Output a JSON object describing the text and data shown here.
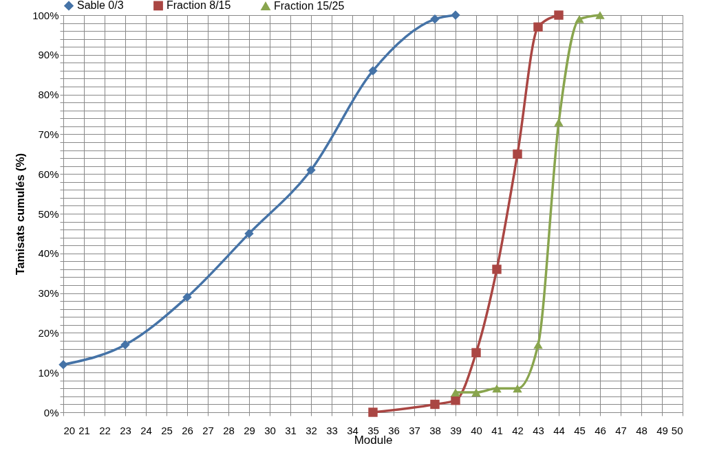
{
  "chart_data": {
    "type": "line",
    "xlabel": "Module",
    "ylabel": "Tamisats cumulés  (%)",
    "xlim": [
      20,
      50
    ],
    "xticks": [
      20,
      21,
      22,
      23,
      24,
      25,
      26,
      27,
      28,
      29,
      30,
      31,
      32,
      33,
      34,
      35,
      36,
      37,
      38,
      39,
      40,
      41,
      42,
      43,
      44,
      45,
      46,
      47,
      48,
      49,
      50
    ],
    "ylim": [
      0,
      100
    ],
    "yticks": [
      {
        "value": 0,
        "label": "0%"
      },
      {
        "value": 2,
        "label": null
      },
      {
        "value": 4,
        "label": null
      },
      {
        "value": 6,
        "label": null
      },
      {
        "value": 8,
        "label": null
      },
      {
        "value": 10,
        "label": "10%"
      },
      {
        "value": 12,
        "label": null
      },
      {
        "value": 14,
        "label": null
      },
      {
        "value": 16,
        "label": null
      },
      {
        "value": 18,
        "label": null
      },
      {
        "value": 20,
        "label": "20%"
      },
      {
        "value": 22,
        "label": null
      },
      {
        "value": 24,
        "label": null
      },
      {
        "value": 26,
        "label": null
      },
      {
        "value": 28,
        "label": null
      },
      {
        "value": 30,
        "label": "30%"
      },
      {
        "value": 32,
        "label": null
      },
      {
        "value": 34,
        "label": null
      },
      {
        "value": 36,
        "label": null
      },
      {
        "value": 38,
        "label": null
      },
      {
        "value": 40,
        "label": "40%"
      },
      {
        "value": 42,
        "label": null
      },
      {
        "value": 44,
        "label": null
      },
      {
        "value": 46,
        "label": null
      },
      {
        "value": 48,
        "label": null
      },
      {
        "value": 50,
        "label": "50%"
      },
      {
        "value": 52,
        "label": null
      },
      {
        "value": 54,
        "label": null
      },
      {
        "value": 56,
        "label": null
      },
      {
        "value": 58,
        "label": null
      },
      {
        "value": 60,
        "label": "60%"
      },
      {
        "value": 62,
        "label": null
      },
      {
        "value": 64,
        "label": null
      },
      {
        "value": 66,
        "label": null
      },
      {
        "value": 68,
        "label": null
      },
      {
        "value": 70,
        "label": "70%"
      },
      {
        "value": 72,
        "label": null
      },
      {
        "value": 74,
        "label": null
      },
      {
        "value": 76,
        "label": null
      },
      {
        "value": 78,
        "label": null
      },
      {
        "value": 80,
        "label": "80%"
      },
      {
        "value": 82,
        "label": null
      },
      {
        "value": 84,
        "label": null
      },
      {
        "value": 86,
        "label": null
      },
      {
        "value": 88,
        "label": null
      },
      {
        "value": 90,
        "label": "90%"
      },
      {
        "value": 92,
        "label": null
      },
      {
        "value": 94,
        "label": null
      },
      {
        "value": 96,
        "label": null
      },
      {
        "value": 98,
        "label": null
      },
      {
        "value": 100,
        "label": "100%"
      }
    ],
    "grid": true,
    "legend": "top",
    "series": [
      {
        "name": "Sable 0/3",
        "color": "#4573a7",
        "marker": "diamond",
        "x": [
          20,
          23,
          26,
          29,
          32,
          35,
          38,
          39
        ],
        "values": [
          12,
          17,
          29,
          45,
          61,
          86,
          99,
          100
        ]
      },
      {
        "name": "Fraction 8/15",
        "color": "#aa4643",
        "marker": "square",
        "x": [
          35,
          38,
          39,
          40,
          41,
          42,
          43,
          44
        ],
        "values": [
          0,
          2,
          3,
          15,
          36,
          65,
          97,
          100
        ]
      },
      {
        "name": "Fraction 15/25",
        "color": "#89a54e",
        "marker": "triangle",
        "x": [
          39,
          40,
          41,
          42,
          43,
          44,
          45,
          46
        ],
        "values": [
          5,
          5,
          6,
          6,
          17,
          73,
          99,
          100
        ]
      }
    ]
  }
}
